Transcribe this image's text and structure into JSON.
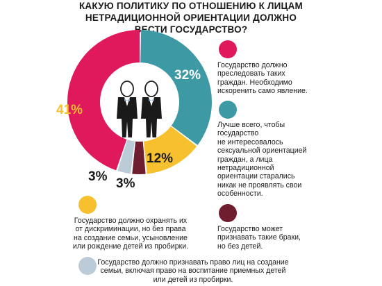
{
  "title": "КАКУЮ ПОЛИТИКУ ПО ОТНОШЕНИЮ К ЛИЦАМ НЕТРАДИЦИОННОЙ ОРИЕНТАЦИИ ДОЛЖНО ВЕСТИ ГОСУДАРСТВО?",
  "chart_data": {
    "type": "pie",
    "title": "КАКУЮ ПОЛИТИКУ ПО ОТНОШЕНИЮ К ЛИЦАМ НЕТРАДИЦИОННОЙ ОРИЕНТАЦИИ ДОЛЖНО ВЕСТИ ГОСУДАРСТВО?",
    "unit": "%",
    "slices": [
      {
        "key": "persecute",
        "value": 32,
        "label": "32%",
        "color": "#3d9aa4",
        "description": "Государство должно\nпреследовать таких\nграждан. Необходимо\nискоренить само явление."
      },
      {
        "key": "protect",
        "value": 12,
        "label": "12%",
        "color": "#f6c02e",
        "description": "Государство должно охранять их\nот дискриминации, но без права\nна создание семьи, усыновление\nили  рождение детей из пробирки."
      },
      {
        "key": "marriage",
        "value": 3,
        "label": "3%",
        "color": "#6e1e2f",
        "description": "Государство может\nпризнавать такие браки,\nно без детей."
      },
      {
        "key": "full_rights",
        "value": 3,
        "label": "3%",
        "color": "#bccbd8",
        "description": "Государство должно признавать право лиц на создание\nсемьи, включая право на воспитание приемных детей\nили детей из пробирки."
      },
      {
        "key": "not_interested",
        "value": 41,
        "label": "41%",
        "color": "#e0185c",
        "description": "Лучше всего, чтобы\nгосударство\nне интересовалось\n сексуальной ориентацией\nграждан, а лица\nнетрадиционной\nориентации старались\nникак не проявлять свои\nособенности."
      }
    ],
    "legend_dot_colors": [
      "#e0185c",
      "#3d9aa4",
      "#f6c02e",
      "#6e1e2f",
      "#bccbd8"
    ]
  },
  "icons": {
    "center": "two-men-in-suits-icon"
  }
}
